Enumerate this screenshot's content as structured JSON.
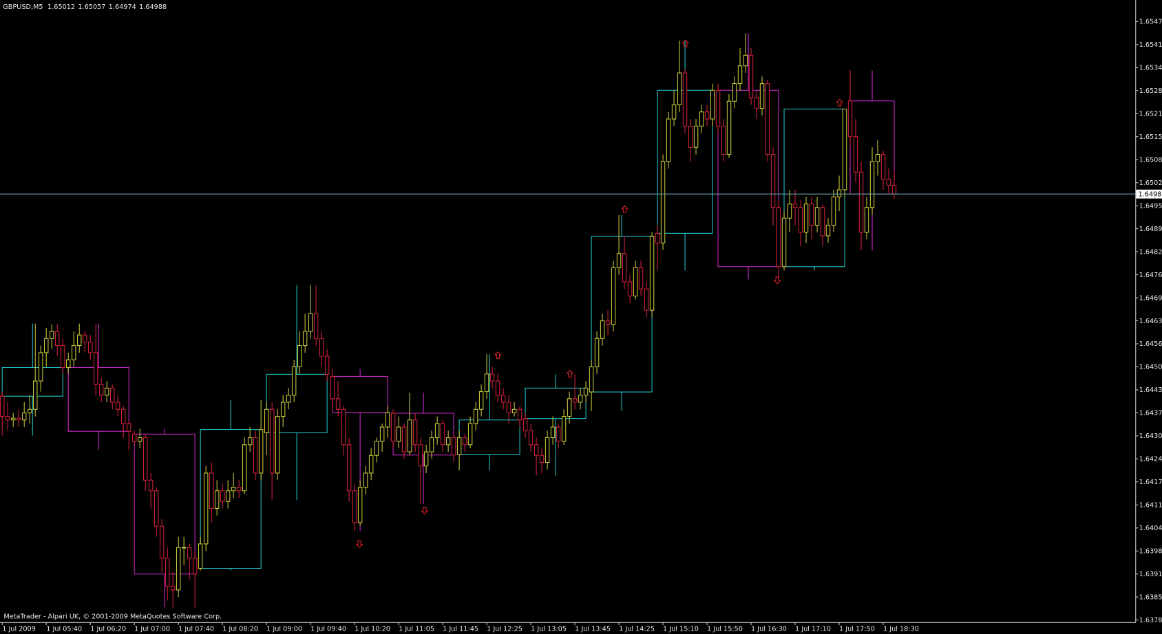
{
  "chart_data": {
    "type": "candlestick",
    "title": "GBPUSD,M5",
    "copyright": "MetaTrader - Alpari UK, © 2001-2009 MetaQuotes Software Corp.",
    "up_color": "#c8c83c",
    "down_color": "#d0203c",
    "bid_color": "#5f9fa8",
    "grid": false,
    "ylim": [
      1.63779,
      1.65536
    ],
    "yticks": [
      {
        "value": 1.65475,
        "label": "1.65475"
      },
      {
        "value": 1.6541,
        "label": "1.65410"
      },
      {
        "value": 1.65345,
        "label": "1.65345"
      },
      {
        "value": 1.6528,
        "label": "1.65280"
      },
      {
        "value": 1.65215,
        "label": "1.65215"
      },
      {
        "value": 1.6515,
        "label": "1.65150"
      },
      {
        "value": 1.65085,
        "label": "1.65085"
      },
      {
        "value": 1.6502,
        "label": "1.65020"
      },
      {
        "value": 1.64955,
        "label": "1.64955"
      },
      {
        "value": 1.6489,
        "label": "1.64890"
      },
      {
        "value": 1.64825,
        "label": "1.64825"
      },
      {
        "value": 1.6476,
        "label": "1.64760"
      },
      {
        "value": 1.64695,
        "label": "1.64695"
      },
      {
        "value": 1.6463,
        "label": "1.64630"
      },
      {
        "value": 1.64565,
        "label": "1.64565"
      },
      {
        "value": 1.645,
        "label": "1.64500"
      },
      {
        "value": 1.64435,
        "label": "1.64435"
      },
      {
        "value": 1.6437,
        "label": "1.64370"
      },
      {
        "value": 1.64305,
        "label": "1.64305"
      },
      {
        "value": 1.6424,
        "label": "1.64240"
      },
      {
        "value": 1.64175,
        "label": "1.64175"
      },
      {
        "value": 1.6411,
        "label": "1.64110"
      },
      {
        "value": 1.64045,
        "label": "1.64045"
      },
      {
        "value": 1.6398,
        "label": "1.63980"
      },
      {
        "value": 1.63915,
        "label": "1.63915"
      },
      {
        "value": 1.6385,
        "label": "1.63850"
      },
      {
        "value": 1.63785,
        "label": "1.63785"
      }
    ],
    "categories": [
      "1 Jul 2009",
      null,
      null,
      null,
      null,
      null,
      null,
      null,
      "1 Jul 05:40",
      null,
      null,
      null,
      null,
      null,
      null,
      null,
      "1 Jul 06:20",
      null,
      null,
      null,
      null,
      null,
      null,
      null,
      "1 Jul 07:00",
      null,
      null,
      null,
      null,
      null,
      null,
      null,
      "1 Jul 07:40",
      null,
      null,
      null,
      null,
      null,
      null,
      null,
      "1 Jul 08:20",
      null,
      null,
      null,
      null,
      null,
      null,
      null,
      "1 Jul 09:00",
      null,
      null,
      null,
      null,
      null,
      null,
      null,
      "1 Jul 09:40",
      null,
      null,
      null,
      null,
      null,
      null,
      null,
      "1 Jul 10:20",
      null,
      null,
      null,
      null,
      null,
      null,
      null,
      "1 Jul 11:05",
      null,
      null,
      null,
      null,
      null,
      null,
      null,
      "1 Jul 11:45",
      null,
      null,
      null,
      null,
      null,
      null,
      null,
      "1 Jul 12:25",
      null,
      null,
      null,
      null,
      null,
      null,
      null,
      "1 Jul 13:05",
      null,
      null,
      null,
      null,
      null,
      null,
      null,
      "1 Jul 13:45",
      null,
      null,
      null,
      null,
      null,
      null,
      null,
      "1 Jul 14:25",
      null,
      null,
      null,
      null,
      null,
      null,
      null,
      "1 Jul 15:10",
      null,
      null,
      null,
      null,
      null,
      null,
      null,
      "1 Jul 15:50",
      null,
      null,
      null,
      null,
      null,
      null,
      null,
      "1 Jul 16:30",
      null,
      null,
      null,
      null,
      null,
      null,
      null,
      "1 Jul 17:10",
      null,
      null,
      null,
      null,
      null,
      null,
      null,
      "1 Jul 17:50",
      null,
      null,
      null,
      null,
      null,
      null,
      null,
      "1 Jul 18:30",
      null,
      null
    ],
    "candles": [
      [
        1.64417,
        1.6443,
        1.64306,
        1.6436
      ],
      [
        1.6436,
        1.644,
        1.6432,
        1.6435
      ],
      [
        1.6435,
        1.6437,
        1.6433,
        1.64355
      ],
      [
        1.64355,
        1.6438,
        1.6433,
        1.6435
      ],
      [
        1.6435,
        1.644,
        1.6433,
        1.6437
      ],
      [
        1.6437,
        1.6442,
        1.6434,
        1.6438
      ],
      [
        1.6438,
        1.64622,
        1.6436,
        1.6446
      ],
      [
        1.6446,
        1.6456,
        1.6443,
        1.6454
      ],
      [
        1.6454,
        1.6461,
        1.645,
        1.6458
      ],
      [
        1.6458,
        1.6462,
        1.6455,
        1.646
      ],
      [
        1.646,
        1.6462,
        1.6453,
        1.6456
      ],
      [
        1.6456,
        1.6458,
        1.6448,
        1.64498
      ],
      [
        1.64498,
        1.6454,
        1.6448,
        1.6452
      ],
      [
        1.6452,
        1.646,
        1.645,
        1.6456
      ],
      [
        1.6456,
        1.64622,
        1.6454,
        1.6459
      ],
      [
        1.6459,
        1.646,
        1.6454,
        1.6457
      ],
      [
        1.6457,
        1.6459,
        1.6452,
        1.6454
      ],
      [
        1.6454,
        1.64622,
        1.6442,
        1.6445
      ],
      [
        1.6445,
        1.6447,
        1.644,
        1.6442
      ],
      [
        1.6442,
        1.6446,
        1.644,
        1.6444
      ],
      [
        1.6444,
        1.6445,
        1.6438,
        1.644
      ],
      [
        1.644,
        1.6442,
        1.6436,
        1.6438
      ],
      [
        1.6438,
        1.6439,
        1.643,
        1.6434
      ],
      [
        1.6434,
        1.6435,
        1.64266,
        1.64318
      ],
      [
        1.6431,
        1.6432,
        1.6428,
        1.6429
      ],
      [
        1.6429,
        1.64325,
        1.6427,
        1.643
      ],
      [
        1.643,
        1.6431,
        1.6415,
        1.6418
      ],
      [
        1.6418,
        1.642,
        1.641,
        1.6415
      ],
      [
        1.6415,
        1.6416,
        1.6402,
        1.6405
      ],
      [
        1.6405,
        1.6407,
        1.6392,
        1.6396
      ],
      [
        1.6396,
        1.6399,
        1.6384,
        1.6388
      ],
      [
        1.6388,
        1.6392,
        1.6382,
        1.6387
      ],
      [
        1.6387,
        1.6402,
        1.6385,
        1.6399
      ],
      [
        1.6399,
        1.6402,
        1.6394,
        1.6399
      ],
      [
        1.6399,
        1.64,
        1.639,
        1.6396
      ],
      [
        1.6396,
        1.6398,
        1.6382,
        1.63915
      ],
      [
        1.63931,
        1.6402,
        1.63925,
        1.64
      ],
      [
        1.64,
        1.6422,
        1.6398,
        1.642
      ],
      [
        1.642,
        1.6423,
        1.6406,
        1.641
      ],
      [
        1.641,
        1.6418,
        1.6408,
        1.6415
      ],
      [
        1.6415,
        1.6417,
        1.641,
        1.6412
      ],
      [
        1.6412,
        1.6418,
        1.641,
        1.6415
      ],
      [
        1.6415,
        1.642,
        1.6413,
        1.6416
      ],
      [
        1.6416,
        1.6418,
        1.6413,
        1.6415
      ],
      [
        1.6415,
        1.643,
        1.6414,
        1.6428
      ],
      [
        1.6428,
        1.6433,
        1.6426,
        1.643
      ],
      [
        1.643,
        1.6432,
        1.6418,
        1.642
      ],
      [
        1.642,
        1.64406,
        1.6418,
        1.64323
      ],
      [
        1.64314,
        1.644,
        1.6425,
        1.6438
      ],
      [
        1.6438,
        1.644,
        1.64124,
        1.642
      ],
      [
        1.642,
        1.6438,
        1.6418,
        1.6436
      ],
      [
        1.6436,
        1.6442,
        1.6433,
        1.644
      ],
      [
        1.644,
        1.6444,
        1.6438,
        1.6442
      ],
      [
        1.6442,
        1.6452,
        1.644,
        1.645
      ],
      [
        1.645,
        1.646,
        1.6448,
        1.6456
      ],
      [
        1.6456,
        1.6465,
        1.6454,
        1.646
      ],
      [
        1.646,
        1.64731,
        1.6458,
        1.6465
      ],
      [
        1.6465,
        1.64731,
        1.6456,
        1.6458
      ],
      [
        1.6458,
        1.646,
        1.645,
        1.6453
      ],
      [
        1.6453,
        1.6455,
        1.6446,
        1.64479
      ],
      [
        1.64473,
        1.64494,
        1.6438,
        1.6441
      ],
      [
        1.6441,
        1.6446,
        1.6436,
        1.6438
      ],
      [
        1.6438,
        1.6439,
        1.6425,
        1.6428
      ],
      [
        1.6428,
        1.643,
        1.6412,
        1.6415
      ],
      [
        1.6415,
        1.6417,
        1.64036,
        1.6406
      ],
      [
        1.6406,
        1.6418,
        1.6405,
        1.6416
      ],
      [
        1.6416,
        1.6422,
        1.6414,
        1.642
      ],
      [
        1.642,
        1.6427,
        1.6418,
        1.6425
      ],
      [
        1.6425,
        1.643,
        1.6423,
        1.6429
      ],
      [
        1.6429,
        1.6434,
        1.6426,
        1.6433
      ],
      [
        1.6433,
        1.6439,
        1.643,
        1.64371
      ],
      [
        1.64369,
        1.6438,
        1.6427,
        1.6429
      ],
      [
        1.6429,
        1.6436,
        1.6427,
        1.6433
      ],
      [
        1.6433,
        1.6434,
        1.6424,
        1.6426
      ],
      [
        1.6426,
        1.64427,
        1.6425,
        1.6435
      ],
      [
        1.6435,
        1.6437,
        1.6426,
        1.6428
      ],
      [
        1.6428,
        1.643,
        1.64113,
        1.6422
      ],
      [
        1.6422,
        1.6428,
        1.642,
        1.6426
      ],
      [
        1.6426,
        1.6432,
        1.6424,
        1.643
      ],
      [
        1.643,
        1.6436,
        1.6428,
        1.6434
      ],
      [
        1.6434,
        1.6435,
        1.6426,
        1.6428
      ],
      [
        1.6428,
        1.6432,
        1.6426,
        1.643
      ],
      [
        1.643,
        1.6431,
        1.6423,
        1.64251
      ],
      [
        1.64253,
        1.6432,
        1.64208,
        1.643
      ],
      [
        1.643,
        1.6431,
        1.6426,
        1.6428
      ],
      [
        1.6428,
        1.6436,
        1.6427,
        1.6434
      ],
      [
        1.6434,
        1.644,
        1.6432,
        1.6438
      ],
      [
        1.6438,
        1.6445,
        1.6436,
        1.6443
      ],
      [
        1.6443,
        1.64536,
        1.6441,
        1.6448
      ],
      [
        1.6448,
        1.645,
        1.6444,
        1.6446
      ],
      [
        1.6446,
        1.6448,
        1.644,
        1.6442
      ],
      [
        1.6442,
        1.6444,
        1.6438,
        1.644
      ],
      [
        1.644,
        1.6442,
        1.6434,
        1.6437
      ],
      [
        1.6437,
        1.644,
        1.6436,
        1.6438
      ],
      [
        1.6438,
        1.6439,
        1.6433,
        1.6435
      ],
      [
        1.64354,
        1.6437,
        1.643,
        1.6432
      ],
      [
        1.6432,
        1.6434,
        1.6426,
        1.6428
      ],
      [
        1.6428,
        1.643,
        1.64193,
        1.6425
      ],
      [
        1.6425,
        1.6427,
        1.642,
        1.6423
      ],
      [
        1.6423,
        1.6432,
        1.6421,
        1.643
      ],
      [
        1.643,
        1.6436,
        1.6428,
        1.6433
      ],
      [
        1.6433,
        1.6434,
        1.6427,
        1.6429
      ],
      [
        1.6429,
        1.6438,
        1.6428,
        1.6436
      ],
      [
        1.6436,
        1.6443,
        1.6434,
        1.6441
      ],
      [
        1.6441,
        1.64479,
        1.6438,
        1.644
      ],
      [
        1.644,
        1.6444,
        1.6438,
        1.6442
      ],
      [
        1.6442,
        1.6446,
        1.644,
        1.6444
      ],
      [
        1.64429,
        1.6452,
        1.64375,
        1.645
      ],
      [
        1.645,
        1.646,
        1.6448,
        1.6458
      ],
      [
        1.6458,
        1.6465,
        1.6456,
        1.6463
      ],
      [
        1.6463,
        1.6466,
        1.6459,
        1.6462
      ],
      [
        1.6462,
        1.648,
        1.646,
        1.6478
      ],
      [
        1.6478,
        1.64929,
        1.6476,
        1.6482
      ],
      [
        1.6482,
        1.6487,
        1.6472,
        1.6474
      ],
      [
        1.6474,
        1.6476,
        1.6468,
        1.647
      ],
      [
        1.647,
        1.648,
        1.6469,
        1.6478
      ],
      [
        1.6478,
        1.648,
        1.647,
        1.6472
      ],
      [
        1.6472,
        1.6474,
        1.6464,
        1.6466
      ],
      [
        1.6466,
        1.6488,
        1.6464,
        1.64869
      ],
      [
        1.64877,
        1.649,
        1.64772,
        1.6485
      ],
      [
        1.6485,
        1.651,
        1.6483,
        1.6508
      ],
      [
        1.6508,
        1.6522,
        1.6506,
        1.652
      ],
      [
        1.652,
        1.6528,
        1.6518,
        1.6524
      ],
      [
        1.6524,
        1.65421,
        1.6522,
        1.6533
      ],
      [
        1.6533,
        1.6534,
        1.6516,
        1.6518
      ],
      [
        1.6518,
        1.652,
        1.6508,
        1.6512
      ],
      [
        1.6512,
        1.652,
        1.651,
        1.6518
      ],
      [
        1.6518,
        1.6524,
        1.6516,
        1.6522
      ],
      [
        1.6522,
        1.6524,
        1.6518,
        1.652
      ],
      [
        1.652,
        1.653,
        1.6518,
        1.65281
      ],
      [
        1.65281,
        1.653,
        1.6516,
        1.6518
      ],
      [
        1.6518,
        1.652,
        1.6508,
        1.651
      ],
      [
        1.651,
        1.6527,
        1.6509,
        1.6525
      ],
      [
        1.6525,
        1.6532,
        1.6523,
        1.653
      ],
      [
        1.653,
        1.654,
        1.6528,
        1.6535
      ],
      [
        1.6535,
        1.65442,
        1.6533,
        1.6538
      ],
      [
        1.6538,
        1.654,
        1.6524,
        1.6526
      ],
      [
        1.6526,
        1.6528,
        1.652,
        1.6523
      ],
      [
        1.6523,
        1.6532,
        1.6521,
        1.653
      ],
      [
        1.653,
        1.6531,
        1.6508,
        1.651
      ],
      [
        1.651,
        1.6512,
        1.649,
        1.6495
      ],
      [
        1.6495,
        1.6497,
        1.64747,
        1.64783
      ],
      [
        1.64783,
        1.6494,
        1.64772,
        1.6492
      ],
      [
        1.6492,
        1.65,
        1.6488,
        1.6496
      ],
      [
        1.6496,
        1.65,
        1.649,
        1.6495
      ],
      [
        1.6495,
        1.6497,
        1.6484,
        1.6488
      ],
      [
        1.6488,
        1.6498,
        1.6485,
        1.6496
      ],
      [
        1.6496,
        1.6498,
        1.6486,
        1.649
      ],
      [
        1.649,
        1.6498,
        1.6488,
        1.6495
      ],
      [
        1.6495,
        1.6496,
        1.6484,
        1.6487
      ],
      [
        1.6487,
        1.6492,
        1.6485,
        1.649
      ],
      [
        1.649,
        1.65,
        1.6488,
        1.6498
      ],
      [
        1.6498,
        1.6504,
        1.6494,
        1.65
      ],
      [
        1.65,
        1.65228,
        1.6498,
        1.65228
      ],
      [
        1.65251,
        1.65337,
        1.6512,
        1.6515
      ],
      [
        1.6515,
        1.652,
        1.6502,
        1.6505
      ],
      [
        1.6505,
        1.6508,
        1.64829,
        1.6488
      ],
      [
        1.6488,
        1.6498,
        1.6486,
        1.6495
      ],
      [
        1.6495,
        1.6512,
        1.6493,
        1.6508
      ],
      [
        1.6508,
        1.6514,
        1.6504,
        1.651
      ],
      [
        1.651,
        1.6511,
        1.65,
        1.6503
      ],
      [
        1.6503,
        1.6506,
        1.6499,
        1.65012
      ],
      [
        1.65012,
        1.65057,
        1.64974,
        1.64988
      ]
    ],
    "hourly": {
      "up_color": "#20c4c8",
      "down_color": "#c828c8",
      "open": [
        1.64417,
        1.64498,
        1.6431,
        1.63931,
        1.64314,
        1.64473,
        1.64369,
        1.64253,
        1.64354,
        1.64429,
        1.64877,
        1.65281,
        1.64783,
        1.65251
      ],
      "high": [
        1.64622,
        1.64622,
        1.64325,
        1.64406,
        1.64731,
        1.64494,
        1.64427,
        1.64536,
        1.64479,
        1.64929,
        1.65421,
        1.65442,
        1.65228,
        1.65337
      ],
      "low": [
        1.64306,
        1.64266,
        1.6382,
        1.63925,
        1.64124,
        1.64036,
        1.64113,
        1.64208,
        1.64193,
        1.64375,
        1.64772,
        1.64747,
        1.64772,
        1.64829
      ],
      "close": [
        1.64498,
        1.64318,
        1.63915,
        1.64323,
        1.64479,
        1.64371,
        1.64251,
        1.6435,
        1.6444,
        1.64869,
        1.65281,
        1.64783,
        1.65228,
        1.64988
      ]
    }
  }
}
